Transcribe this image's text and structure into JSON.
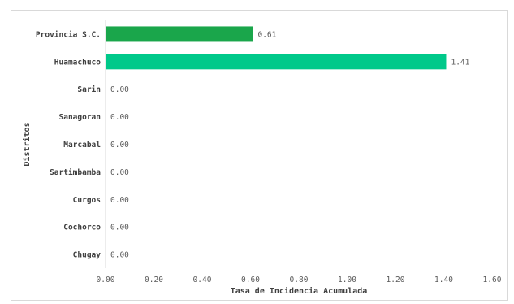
{
  "chart_data": {
    "type": "bar",
    "orientation": "horizontal",
    "title": "",
    "xlabel": "Tasa de Incidencia Acumulada",
    "ylabel": "Distritos",
    "xlim": [
      0,
      1.6
    ],
    "xticks": [
      0,
      0.2,
      0.4,
      0.6,
      0.8,
      1.0,
      1.2,
      1.4,
      1.6
    ],
    "xtick_labels": [
      "0.00",
      "0.20",
      "0.40",
      "0.60",
      "0.80",
      "1.00",
      "1.20",
      "1.40",
      "1.60"
    ],
    "grid": false,
    "categories": [
      "Provincia S.C.",
      "Huamachuco",
      "Sarin",
      "Sanagoran",
      "Marcabal",
      "Sartimbamba",
      "Curgos",
      "Cochorco",
      "Chugay"
    ],
    "values": [
      0.61,
      1.41,
      0.0,
      0.0,
      0.0,
      0.0,
      0.0,
      0.0,
      0.0
    ],
    "data_labels": [
      "0.61",
      "1.41",
      "0.00",
      "0.00",
      "0.00",
      "0.00",
      "0.00",
      "0.00",
      "0.00"
    ],
    "bar_colors": [
      "#1aa64b",
      "#00c98a",
      "#00c98a",
      "#00c98a",
      "#00c98a",
      "#00c98a",
      "#00c98a",
      "#00c98a",
      "#00c98a"
    ]
  }
}
